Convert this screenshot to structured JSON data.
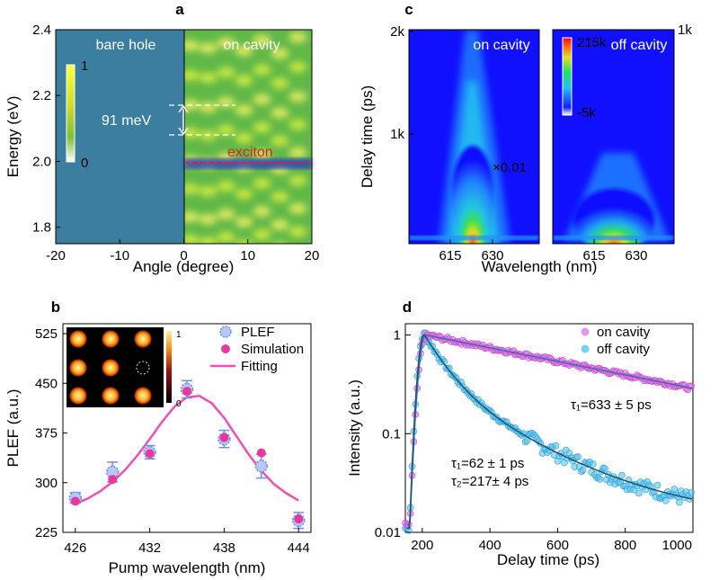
{
  "panels": {
    "a": {
      "letter": "a",
      "xlabel": "Angle (degree)",
      "ylabel": "Energy (eV)",
      "label_left": "bare hole",
      "label_right": "on cavity",
      "annotation_gap": "91 meV",
      "exciton_label": "exciton",
      "colorbar_max": "1",
      "colorbar_min": "0",
      "xticks": [
        "-20",
        "-10",
        "0",
        "10",
        "20"
      ],
      "yticks": [
        "2.4",
        "2.2",
        "2.0",
        "1.8"
      ]
    },
    "b": {
      "letter": "b",
      "xlabel": "Pump wavelength (nm)",
      "ylabel": "PLEF (a.u.)",
      "legend": [
        "PLEF",
        "Simulation",
        "Fitting"
      ],
      "inset_cbar_max": "1",
      "inset_cbar_min": "0",
      "xticks": [
        "426",
        "432",
        "438",
        "444"
      ],
      "yticks": [
        "525",
        "450",
        "375",
        "300",
        "225"
      ]
    },
    "c": {
      "letter": "c",
      "xlabel": "Wavelength (nm)",
      "ylabel": "Delay time (ps)",
      "label_left": "on cavity",
      "label_right": "off cavity",
      "scale_note": "×0.01",
      "cbar_max": "215k",
      "cbar_min": "-5k",
      "right_axis_top": "1k",
      "yticks": [
        "2k",
        "1k"
      ],
      "xticks_left": [
        "615",
        "630"
      ],
      "xticks_right": [
        "615",
        "630"
      ]
    },
    "d": {
      "letter": "d",
      "xlabel": "Delay time (ps)",
      "ylabel": "Intensity (a.u.)",
      "legend": [
        "on cavity",
        "off cavity"
      ],
      "tau_on": "τ₁=633 ± 5 ps",
      "tau_off_1": "τ₁=62 ± 1 ps",
      "tau_off_2": "τ₂=217± 4 ps",
      "xticks": [
        "200",
        "400",
        "600",
        "800",
        "1000"
      ],
      "yticks": [
        "1",
        "0.1",
        "0.01"
      ]
    }
  },
  "colors": {
    "plef": "#6e8ef0",
    "simulation": "#e8389f",
    "fitting": "#f24fb6",
    "on_cavity": "#e07ae8",
    "off_cavity": "#59c4ec",
    "exciton": "#e02020"
  },
  "chart_data": [
    {
      "type": "heatmap",
      "panel": "a",
      "xlim": [
        -20,
        20
      ],
      "ylim": [
        1.75,
        2.4
      ],
      "exciton_energy": 2.0,
      "mode_spacing_meV": 91
    },
    {
      "type": "scatter",
      "panel": "b",
      "xlim": [
        425,
        445
      ],
      "ylim": [
        225,
        540
      ],
      "series": [
        {
          "name": "PLEF",
          "x": [
            426,
            429,
            432,
            435,
            438,
            441,
            444
          ],
          "y": [
            277,
            316,
            346,
            441,
            366,
            325,
            243
          ],
          "err": [
            8,
            15,
            10,
            13,
            13,
            18,
            12
          ]
        },
        {
          "name": "Simulation",
          "x": [
            426,
            429,
            432,
            435,
            438,
            441,
            444
          ],
          "y": [
            272,
            305,
            344,
            438,
            368,
            345,
            245
          ]
        },
        {
          "name": "Fitting",
          "x": [
            426,
            427,
            428,
            429,
            430,
            431,
            432,
            433,
            434,
            435,
            436,
            437,
            438,
            439,
            440,
            441,
            442,
            443,
            444
          ],
          "y": [
            268,
            276,
            287,
            301,
            319,
            341,
            366,
            392,
            415,
            429,
            431,
            420,
            398,
            370,
            342,
            318,
            298,
            284,
            273
          ]
        }
      ]
    },
    {
      "type": "heatmap",
      "panel": "c",
      "subpanels": [
        "on cavity",
        "off cavity"
      ],
      "x_range": [
        605,
        640
      ],
      "cbar_range": [
        "-5k",
        "215k"
      ]
    },
    {
      "type": "scatter",
      "panel": "d",
      "xlim": [
        150,
        1000
      ],
      "ylim": [
        0.01,
        1.3
      ],
      "yscale": "log",
      "series": [
        {
          "name": "on cavity",
          "tau": 633,
          "peak": 210
        },
        {
          "name": "off cavity",
          "tau1": 62,
          "tau2": 217,
          "peak": 205
        }
      ]
    }
  ]
}
